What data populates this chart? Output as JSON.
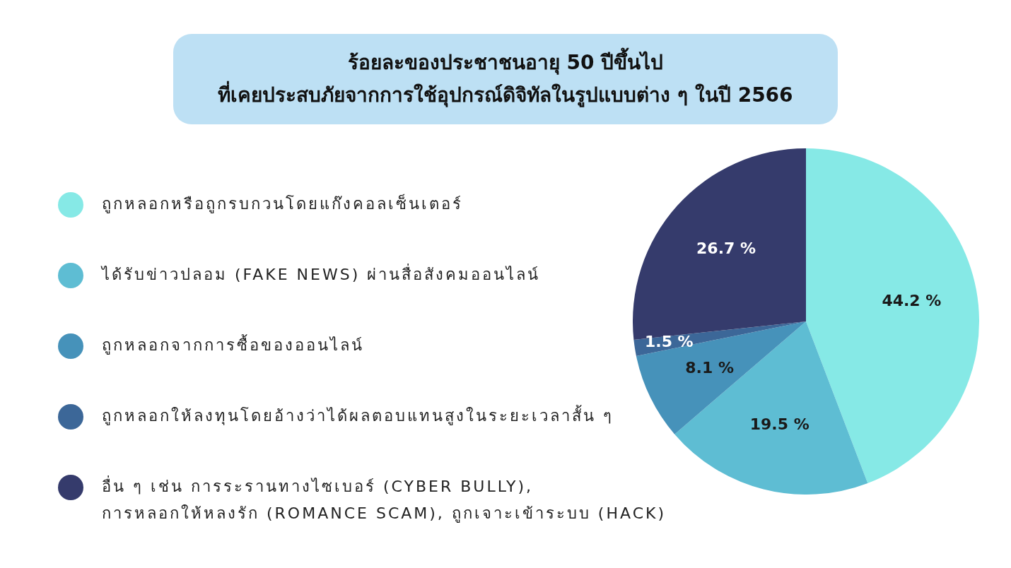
{
  "chart_data": {
    "type": "pie",
    "title": "ร้อยละของประชาชนอายุ 50 ปีขึ้นไป\nที่เคยประสบภัยจากการใช้อุปกรณ์ดิจิทัลในรูปแบบต่าง ๆ ในปี 2566",
    "categories": [
      "ถูกหลอกหรือถูกรบกวนโดยแก๊งคอลเซ็นเตอร์",
      "ได้รับข่าวปลอม (FAKE NEWS) ผ่านสื่อสังคมออนไลน์",
      "ถูกหลอกจากการซื้อของออนไลน์",
      "ถูกหลอกให้ลงทุนโดยอ้างว่าได้ผลตอบแทนสูงในระยะเวลาสั้น ๆ",
      "อื่น ๆ เช่น การระรานทางไซเบอร์ (CYBER BULLY),\nการหลอกให้หลงรัก (ROMANCE SCAM), ถูกเจาะเข้าระบบ (HACK)"
    ],
    "values": [
      44.2,
      19.5,
      8.1,
      1.5,
      26.7
    ],
    "colors": [
      "#86e9e6",
      "#5ebdd3",
      "#4692ba",
      "#3c6798",
      "#353b6c"
    ],
    "value_labels": [
      "44.2 %",
      "19.5 %",
      "8.1 %",
      "1.5 %",
      "26.7 %"
    ],
    "legend": "left"
  }
}
